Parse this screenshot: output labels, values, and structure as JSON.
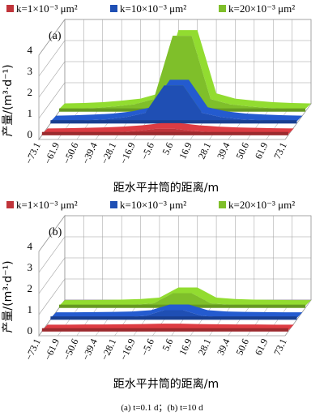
{
  "chart_data": [
    {
      "type": "area",
      "panel_label": "(a)",
      "legend": [
        "k=1×10⁻³ μm²",
        "k=10×10⁻³ μm²",
        "k=20×10⁻³ μm²"
      ],
      "zlabel": "产量/(m³·d⁻¹)",
      "xlabel": "距水平井筒的距离/m",
      "zlim": [
        0,
        4
      ],
      "z_ticks": [
        "0",
        "1",
        "2",
        "3",
        "4"
      ],
      "x_ticks": [
        "−73.1",
        "−61.9",
        "−50.6",
        "−39.4",
        "−28.1",
        "−16.9",
        "−5.6",
        "5.6",
        "16.9",
        "28.1",
        "39.4",
        "50.6",
        "61.9",
        "73.1"
      ],
      "x": [
        -73.1,
        -61.9,
        -50.6,
        -39.4,
        -28.1,
        -16.9,
        -5.6,
        5.6,
        16.9,
        28.1,
        39.4,
        50.6,
        61.9,
        73.1
      ],
      "series": [
        {
          "name": "k=1×10⁻³ μm²",
          "color": "#c0343a",
          "values": [
            0.05,
            0.06,
            0.08,
            0.1,
            0.14,
            0.2,
            0.3,
            0.3,
            0.2,
            0.14,
            0.1,
            0.08,
            0.06,
            0.05
          ]
        },
        {
          "name": "k=10×10⁻³ μm²",
          "color": "#1f4fb4",
          "values": [
            0.1,
            0.12,
            0.15,
            0.2,
            0.3,
            0.5,
            1.8,
            1.8,
            0.5,
            0.3,
            0.2,
            0.15,
            0.12,
            0.1
          ]
        },
        {
          "name": "k=20×10⁻³ μm²",
          "color": "#7fbf2a",
          "values": [
            0.12,
            0.14,
            0.18,
            0.25,
            0.35,
            0.6,
            3.6,
            3.6,
            0.6,
            0.35,
            0.25,
            0.18,
            0.14,
            0.12
          ]
        }
      ],
      "caption_label": "(a) t=0.1 d"
    },
    {
      "type": "area",
      "panel_label": "(b)",
      "legend": [
        "k=1×10⁻³ μm²",
        "k=10×10⁻³ μm²",
        "k=20×10⁻³ μm²"
      ],
      "zlabel": "产量/(m³·d⁻¹)",
      "xlabel": "距水平井筒的距离/m",
      "zlim": [
        0,
        4
      ],
      "z_ticks": [
        "0",
        "1",
        "2",
        "3",
        "4"
      ],
      "x_ticks": [
        "−73.1",
        "−61.9",
        "−50.6",
        "−39.4",
        "−28.1",
        "−16.9",
        "−5.6",
        "5.6",
        "16.9",
        "28.1",
        "39.4",
        "50.6",
        "61.9",
        "73.1"
      ],
      "x": [
        -73.1,
        -61.9,
        -50.6,
        -39.4,
        -28.1,
        -16.9,
        -5.6,
        5.6,
        16.9,
        28.1,
        39.4,
        50.6,
        61.9,
        73.1
      ],
      "series": [
        {
          "name": "k=1×10⁻³ μm²",
          "color": "#c0343a",
          "values": [
            0.05,
            0.05,
            0.06,
            0.06,
            0.07,
            0.08,
            0.1,
            0.1,
            0.08,
            0.07,
            0.06,
            0.06,
            0.05,
            0.05
          ]
        },
        {
          "name": "k=10×10⁻³ μm²",
          "color": "#1f4fb4",
          "values": [
            0.08,
            0.08,
            0.09,
            0.1,
            0.12,
            0.18,
            0.45,
            0.45,
            0.18,
            0.12,
            0.1,
            0.09,
            0.08,
            0.08
          ]
        },
        {
          "name": "k=20×10⁻³ μm²",
          "color": "#7fbf2a",
          "values": [
            0.1,
            0.1,
            0.11,
            0.12,
            0.15,
            0.22,
            0.7,
            0.7,
            0.22,
            0.15,
            0.12,
            0.11,
            0.1,
            0.1
          ]
        }
      ],
      "caption_label": "(b) t=10 d"
    }
  ],
  "caption": "(a) t=0.1 d；(b) t=10 d"
}
